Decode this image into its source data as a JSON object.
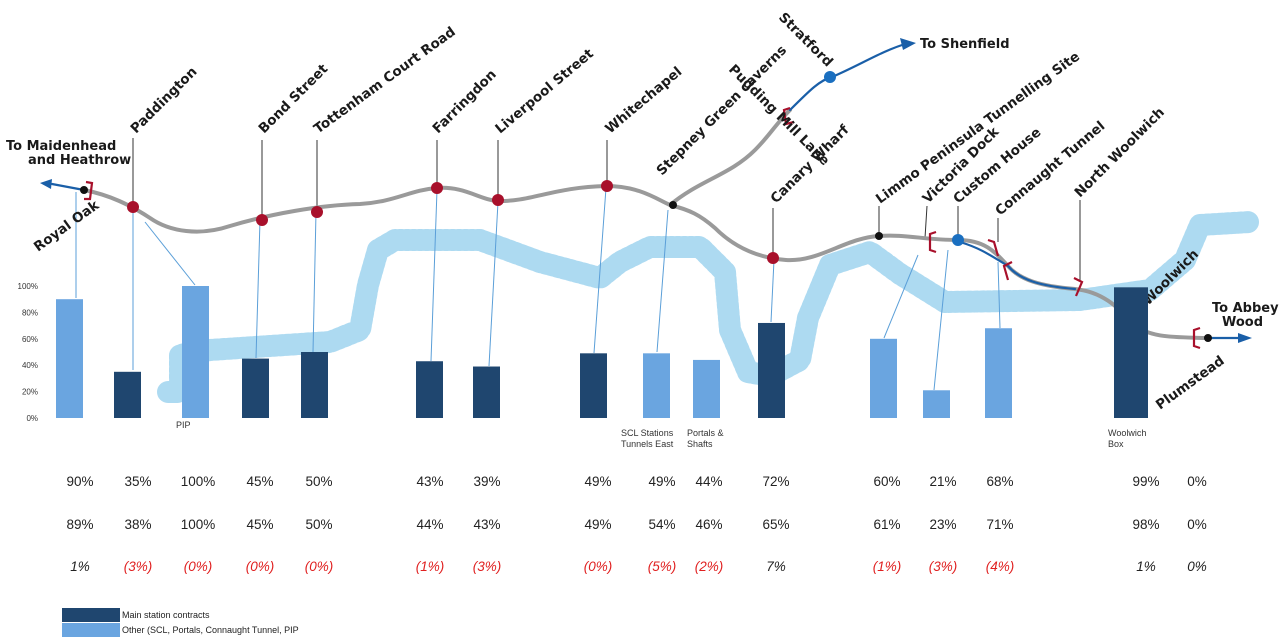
{
  "chart_data": {
    "type": "bar",
    "ylim": [
      0,
      100
    ],
    "y_ticks": [
      "0%",
      "20%",
      "40%",
      "60%",
      "80%",
      "100%"
    ],
    "colors": {
      "main": "#1f466f",
      "other": "#6aa5e0",
      "negative": "#e02020",
      "positive": "#222222",
      "route": "#9a9a9a",
      "branch": "#1a5fa8",
      "station": "#a8102b",
      "river": "#a9d8f0"
    },
    "bars": [
      {
        "id": "royal-oak",
        "value": 90,
        "group": "other",
        "note": ""
      },
      {
        "id": "paddington",
        "value": 35,
        "group": "main",
        "note": ""
      },
      {
        "id": "pip",
        "value": 100,
        "group": "other",
        "note": "PIP"
      },
      {
        "id": "bond-street",
        "value": 45,
        "group": "main",
        "note": ""
      },
      {
        "id": "tottenham",
        "value": 50,
        "group": "main",
        "note": ""
      },
      {
        "id": "farringdon",
        "value": 43,
        "group": "main",
        "note": ""
      },
      {
        "id": "liverpool-street",
        "value": 39,
        "group": "main",
        "note": ""
      },
      {
        "id": "whitechapel",
        "value": 49,
        "group": "main",
        "note": ""
      },
      {
        "id": "scl-stations",
        "value": 49,
        "group": "other",
        "note": "SCL Stations Tunnels East"
      },
      {
        "id": "portals",
        "value": 44,
        "group": "other",
        "note": "Portals & Shafts"
      },
      {
        "id": "canary-wharf",
        "value": 72,
        "group": "main",
        "note": ""
      },
      {
        "id": "limmo",
        "value": 60,
        "group": "other",
        "note": ""
      },
      {
        "id": "victoria-dock",
        "value": 21,
        "group": "other",
        "note": ""
      },
      {
        "id": "connaught",
        "value": 68,
        "group": "other",
        "note": ""
      },
      {
        "id": "woolwich-box",
        "value": 99,
        "group": "main",
        "note": "Woolwich Box"
      },
      {
        "id": "abbey-wood",
        "value": 0,
        "group": "other",
        "note": ""
      }
    ],
    "rows": [
      [
        "90%",
        "35%",
        "100%",
        "45%",
        "50%",
        "43%",
        "39%",
        "49%",
        "49%",
        "44%",
        "72%",
        "60%",
        "21%",
        "68%",
        "99%",
        "0%"
      ],
      [
        "89%",
        "38%",
        "100%",
        "45%",
        "50%",
        "44%",
        "43%",
        "49%",
        "54%",
        "46%",
        "65%",
        "61%",
        "23%",
        "71%",
        "98%",
        "0%"
      ],
      [
        "1%",
        "(3%)",
        "(0%)",
        "(0%)",
        "(0%)",
        "(1%)",
        "(3%)",
        "(0%)",
        "(5%)",
        "(2%)",
        "7%",
        "(1%)",
        "(3%)",
        "(4%)",
        "1%",
        "0%"
      ]
    ],
    "stations": [
      "Royal Oak",
      "Paddington",
      "Bond Street",
      "Tottenham Court Road",
      "Farringdon",
      "Liverpool Street",
      "Whitechapel",
      "Stepney Green caverns",
      "Pudding Mill Lane",
      "Stratford",
      "Canary Wharf",
      "Limmo Peninsula Tunnelling Site",
      "Victoria Dock",
      "Custom House",
      "Connaught Tunnel",
      "North Woolwich",
      "Woolwich",
      "Plumstead"
    ],
    "destinations": {
      "west": [
        "To Maidenhead",
        "and Heathrow"
      ],
      "northeast": "To Shenfield",
      "east": [
        "To Abbey",
        "Wood"
      ]
    },
    "legend": [
      {
        "label": "Main station contracts",
        "group": "main"
      },
      {
        "label": "Other (SCL, Portals, Connaught Tunnel, PIP",
        "group": "other"
      }
    ]
  }
}
